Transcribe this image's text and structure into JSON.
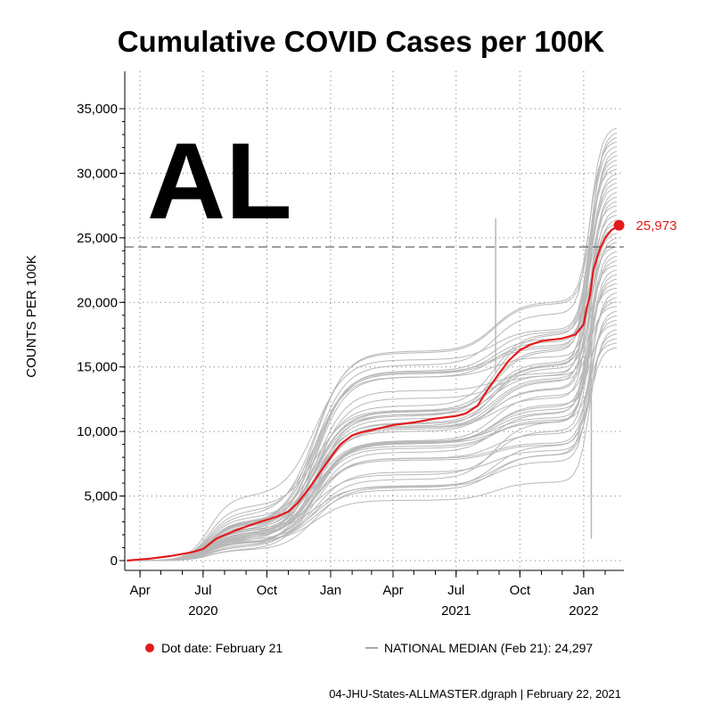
{
  "chart_data": {
    "type": "line",
    "title": "Cumulative COVID Cases per 100K",
    "state_label": "AL",
    "ylabel": "COUNTS PER 100K",
    "xlabel": "",
    "ylim": [
      0,
      35000
    ],
    "yticks": [
      0,
      5000,
      10000,
      15000,
      20000,
      25000,
      30000,
      35000
    ],
    "ytick_labels": [
      "0",
      "5,000",
      "10,000",
      "15,000",
      "20,000",
      "25,000",
      "30,000",
      "35,000"
    ],
    "xlim": [
      "2020-03-10",
      "2022-02-28"
    ],
    "xticks": [
      {
        "date": "2020-04-01",
        "label": "Apr"
      },
      {
        "date": "2020-07-01",
        "label": "Jul"
      },
      {
        "date": "2020-10-01",
        "label": "Oct"
      },
      {
        "date": "2021-01-01",
        "label": "Jan"
      },
      {
        "date": "2021-04-01",
        "label": "Apr"
      },
      {
        "date": "2021-07-01",
        "label": "Jul"
      },
      {
        "date": "2021-10-01",
        "label": "Oct"
      },
      {
        "date": "2022-01-01",
        "label": "Jan"
      }
    ],
    "year_labels": [
      {
        "date": "2020-07-01",
        "label": "2020"
      },
      {
        "date": "2021-07-01",
        "label": "2021"
      },
      {
        "date": "2022-01-01",
        "label": "2022"
      }
    ],
    "grid": true,
    "national_median": 24297,
    "highlight": {
      "name": "AL",
      "color": "#e31a1c",
      "end_label": "25,973",
      "x": [
        "2020-03-13",
        "2020-04-15",
        "2020-05-15",
        "2020-06-15",
        "2020-07-01",
        "2020-07-20",
        "2020-08-15",
        "2020-09-15",
        "2020-10-15",
        "2020-11-01",
        "2020-11-15",
        "2020-12-01",
        "2020-12-15",
        "2021-01-01",
        "2021-01-15",
        "2021-02-01",
        "2021-02-15",
        "2021-03-01",
        "2021-04-01",
        "2021-05-01",
        "2021-06-01",
        "2021-07-01",
        "2021-07-15",
        "2021-08-01",
        "2021-08-15",
        "2021-09-01",
        "2021-09-15",
        "2021-10-01",
        "2021-10-15",
        "2021-11-01",
        "2021-12-01",
        "2021-12-20",
        "2022-01-01",
        "2022-01-05",
        "2022-01-10",
        "2022-01-15",
        "2022-01-20",
        "2022-01-25",
        "2022-02-01",
        "2022-02-10",
        "2022-02-21"
      ],
      "y": [
        0,
        150,
        350,
        650,
        900,
        1700,
        2300,
        2900,
        3400,
        3800,
        4500,
        5600,
        6700,
        8000,
        9000,
        9700,
        9950,
        10100,
        10500,
        10700,
        11000,
        11200,
        11400,
        12000,
        13200,
        14500,
        15500,
        16300,
        16700,
        17000,
        17200,
        17500,
        18300,
        19500,
        20500,
        22500,
        23400,
        24200,
        25000,
        25600,
        25973
      ]
    },
    "dot_label": "Dot date: February 21",
    "median_label": "NATIONAL MEDIAN (Feb 21): 24,297"
  },
  "footer": "04-JHU-States-ALLMASTER.dgraph | February 22, 2021",
  "colors": {
    "highlight": "#e31a1c",
    "others": "#b8b8b8",
    "median": "#555555"
  }
}
